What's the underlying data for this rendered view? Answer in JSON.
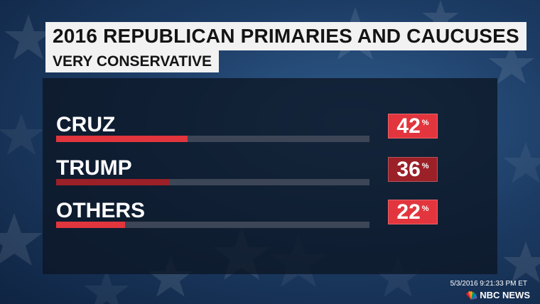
{
  "header": {
    "title": "2016 REPUBLICAN PRIMARIES AND CAUCUSES",
    "subtitle": "VERY CONSERVATIVE"
  },
  "chart_data": {
    "type": "bar",
    "orientation": "horizontal",
    "title": "2016 REPUBLICAN PRIMARIES AND CAUCUSES",
    "subtitle": "VERY CONSERVATIVE",
    "categories": [
      "CRUZ",
      "TRUMP",
      "OTHERS"
    ],
    "values": [
      42,
      36,
      22
    ],
    "value_labels": [
      "42",
      "36",
      "22"
    ],
    "unit_label": "%",
    "xlim": [
      0,
      100
    ],
    "grid": false,
    "legend": "none",
    "colors": [
      "#e2353d",
      "#9b2028",
      "#e2353d"
    ],
    "track_color": "#3c4656"
  },
  "footer": {
    "timestamp": "5/3/2016 9:21:33 PM ET",
    "brand": "NBC NEWS",
    "brand_icon": "peacock-icon"
  }
}
